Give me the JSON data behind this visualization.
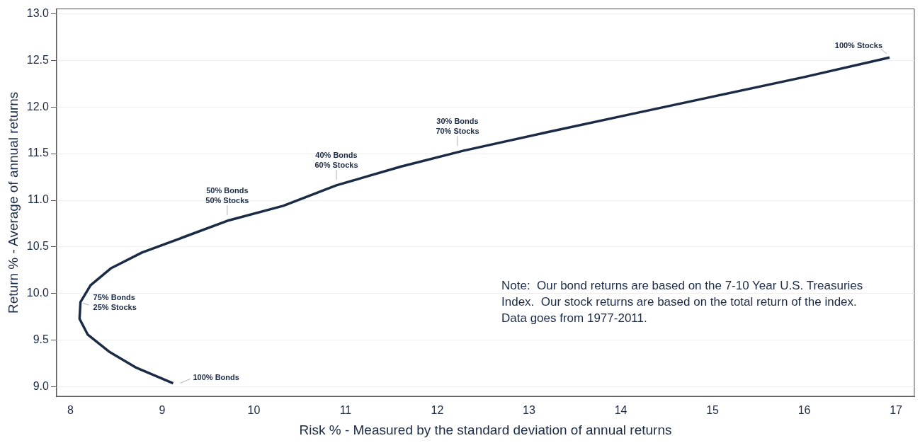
{
  "chart_data": {
    "type": "line",
    "xlabel": "Risk % - Measured by the standard deviation of annual returns",
    "ylabel": "Return % - Average of annual returns",
    "x": [
      9.12,
      8.71,
      8.42,
      8.19,
      8.1,
      8.11,
      8.22,
      8.44,
      8.78,
      9.22,
      9.71,
      10.32,
      10.9,
      11.6,
      12.28,
      13.2,
      14.1,
      15.0,
      16.0,
      16.93
    ],
    "series": [
      {
        "color": "#1b2a45",
        "values": [
          9.04,
          9.21,
          9.38,
          9.56,
          9.73,
          9.91,
          10.09,
          10.27,
          10.44,
          10.6,
          10.78,
          10.94,
          11.16,
          11.36,
          11.53,
          11.73,
          11.92,
          12.11,
          12.32,
          12.53
        ]
      }
    ],
    "xlim": [
      7.85,
      17.2
    ],
    "xticks": [
      8,
      9,
      10,
      11,
      12,
      13,
      14,
      15,
      16,
      17
    ],
    "ylim": [
      8.9,
      13.05
    ],
    "yticks": [
      {
        "value": 9,
        "label": "9.0"
      },
      {
        "value": 9.5,
        "label": "9.5"
      },
      {
        "value": 10,
        "label": "10.0"
      },
      {
        "value": 10.5,
        "label": "10.5"
      },
      {
        "value": 11,
        "label": "11.0"
      },
      {
        "value": 11.5,
        "label": "11.5"
      },
      {
        "value": 12,
        "label": "12.0"
      },
      {
        "value": 12.5,
        "label": "12.5"
      },
      {
        "value": 13,
        "label": "13.0"
      }
    ],
    "grid": "y",
    "legend": false,
    "marker": "none",
    "line_style": "solid",
    "annotations": [
      {
        "text": "100% Bonds",
        "x": 9.12,
        "y": 9.04
      },
      {
        "text": "75% Bonds\n25% Stocks",
        "x": 8.11,
        "y": 9.9
      },
      {
        "text": "50% Bonds\n50% Stocks",
        "x": 9.71,
        "y": 10.78
      },
      {
        "text": "40% Bonds\n60% Stocks",
        "x": 10.9,
        "y": 11.16
      },
      {
        "text": "30% Bonds\n70% Stocks",
        "x": 12.22,
        "y": 11.52
      },
      {
        "text": "100% Stocks",
        "x": 16.93,
        "y": 12.53
      },
      "Note:  Our bond returns are based on the 7-10 Year U.S. Treasuries Index.  Our stock returns are based on the total return of the index.  Data goes from 1977-2011."
    ]
  }
}
